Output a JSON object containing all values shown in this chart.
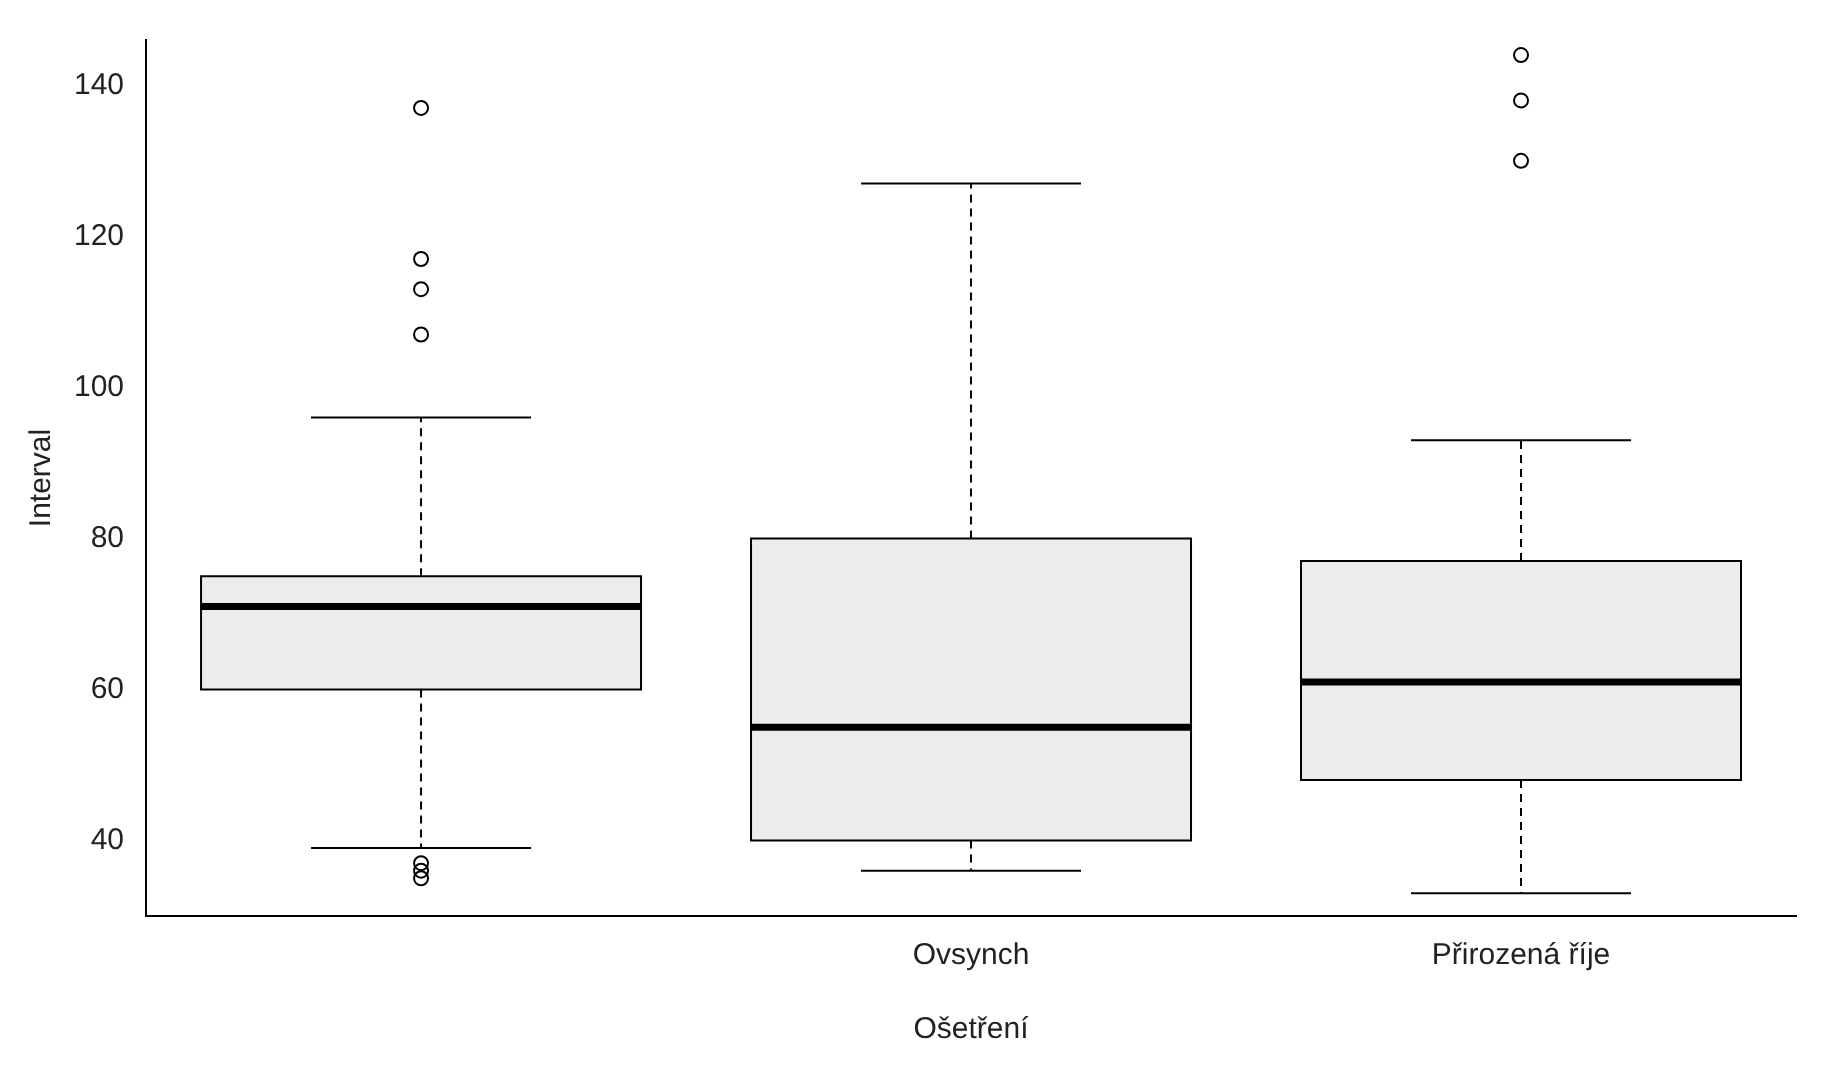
{
  "chart_data": {
    "type": "box",
    "xlabel": "Ošetření",
    "ylabel": "Interval",
    "categories": [
      null,
      "Ovsynch",
      "Přirozená říje"
    ],
    "boxes": [
      {
        "low": 39,
        "q1": 60,
        "median": 71,
        "q3": 75,
        "high": 96,
        "outliers": [
          137,
          117,
          113,
          107,
          37,
          36,
          35
        ]
      },
      {
        "low": 36,
        "q1": 40,
        "median": 55,
        "q3": 80,
        "high": 127
      },
      {
        "low": 33,
        "q1": 48,
        "median": 61,
        "q3": 77,
        "high": 93,
        "outliers": [
          144,
          138,
          130
        ]
      }
    ],
    "ylim": [
      30,
      146
    ],
    "yticks": [
      40,
      60,
      80,
      100,
      120,
      140
    ],
    "grid": false
  }
}
